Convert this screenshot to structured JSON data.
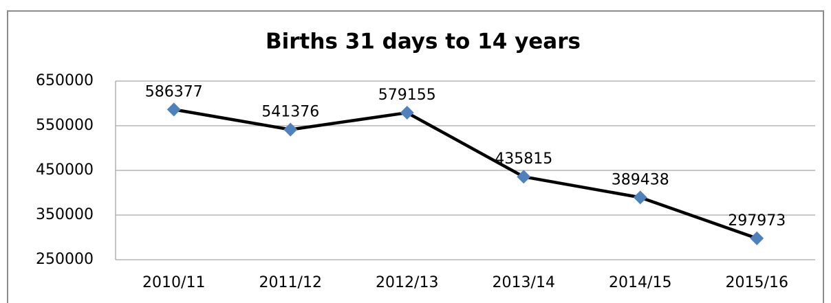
{
  "chart_data": {
    "type": "line",
    "title": "Births 31 days to 14 years",
    "categories": [
      "2010/11",
      "2011/12",
      "2012/13",
      "2013/14",
      "2014/15",
      "2015/16"
    ],
    "values": [
      586377,
      541376,
      579155,
      435815,
      389438,
      297973
    ],
    "color": "#000000",
    "marker_color": "#4f81bd",
    "ylim": [
      250000,
      650000
    ],
    "yticks": [
      250000,
      350000,
      450000,
      550000,
      650000
    ],
    "grid": true
  }
}
